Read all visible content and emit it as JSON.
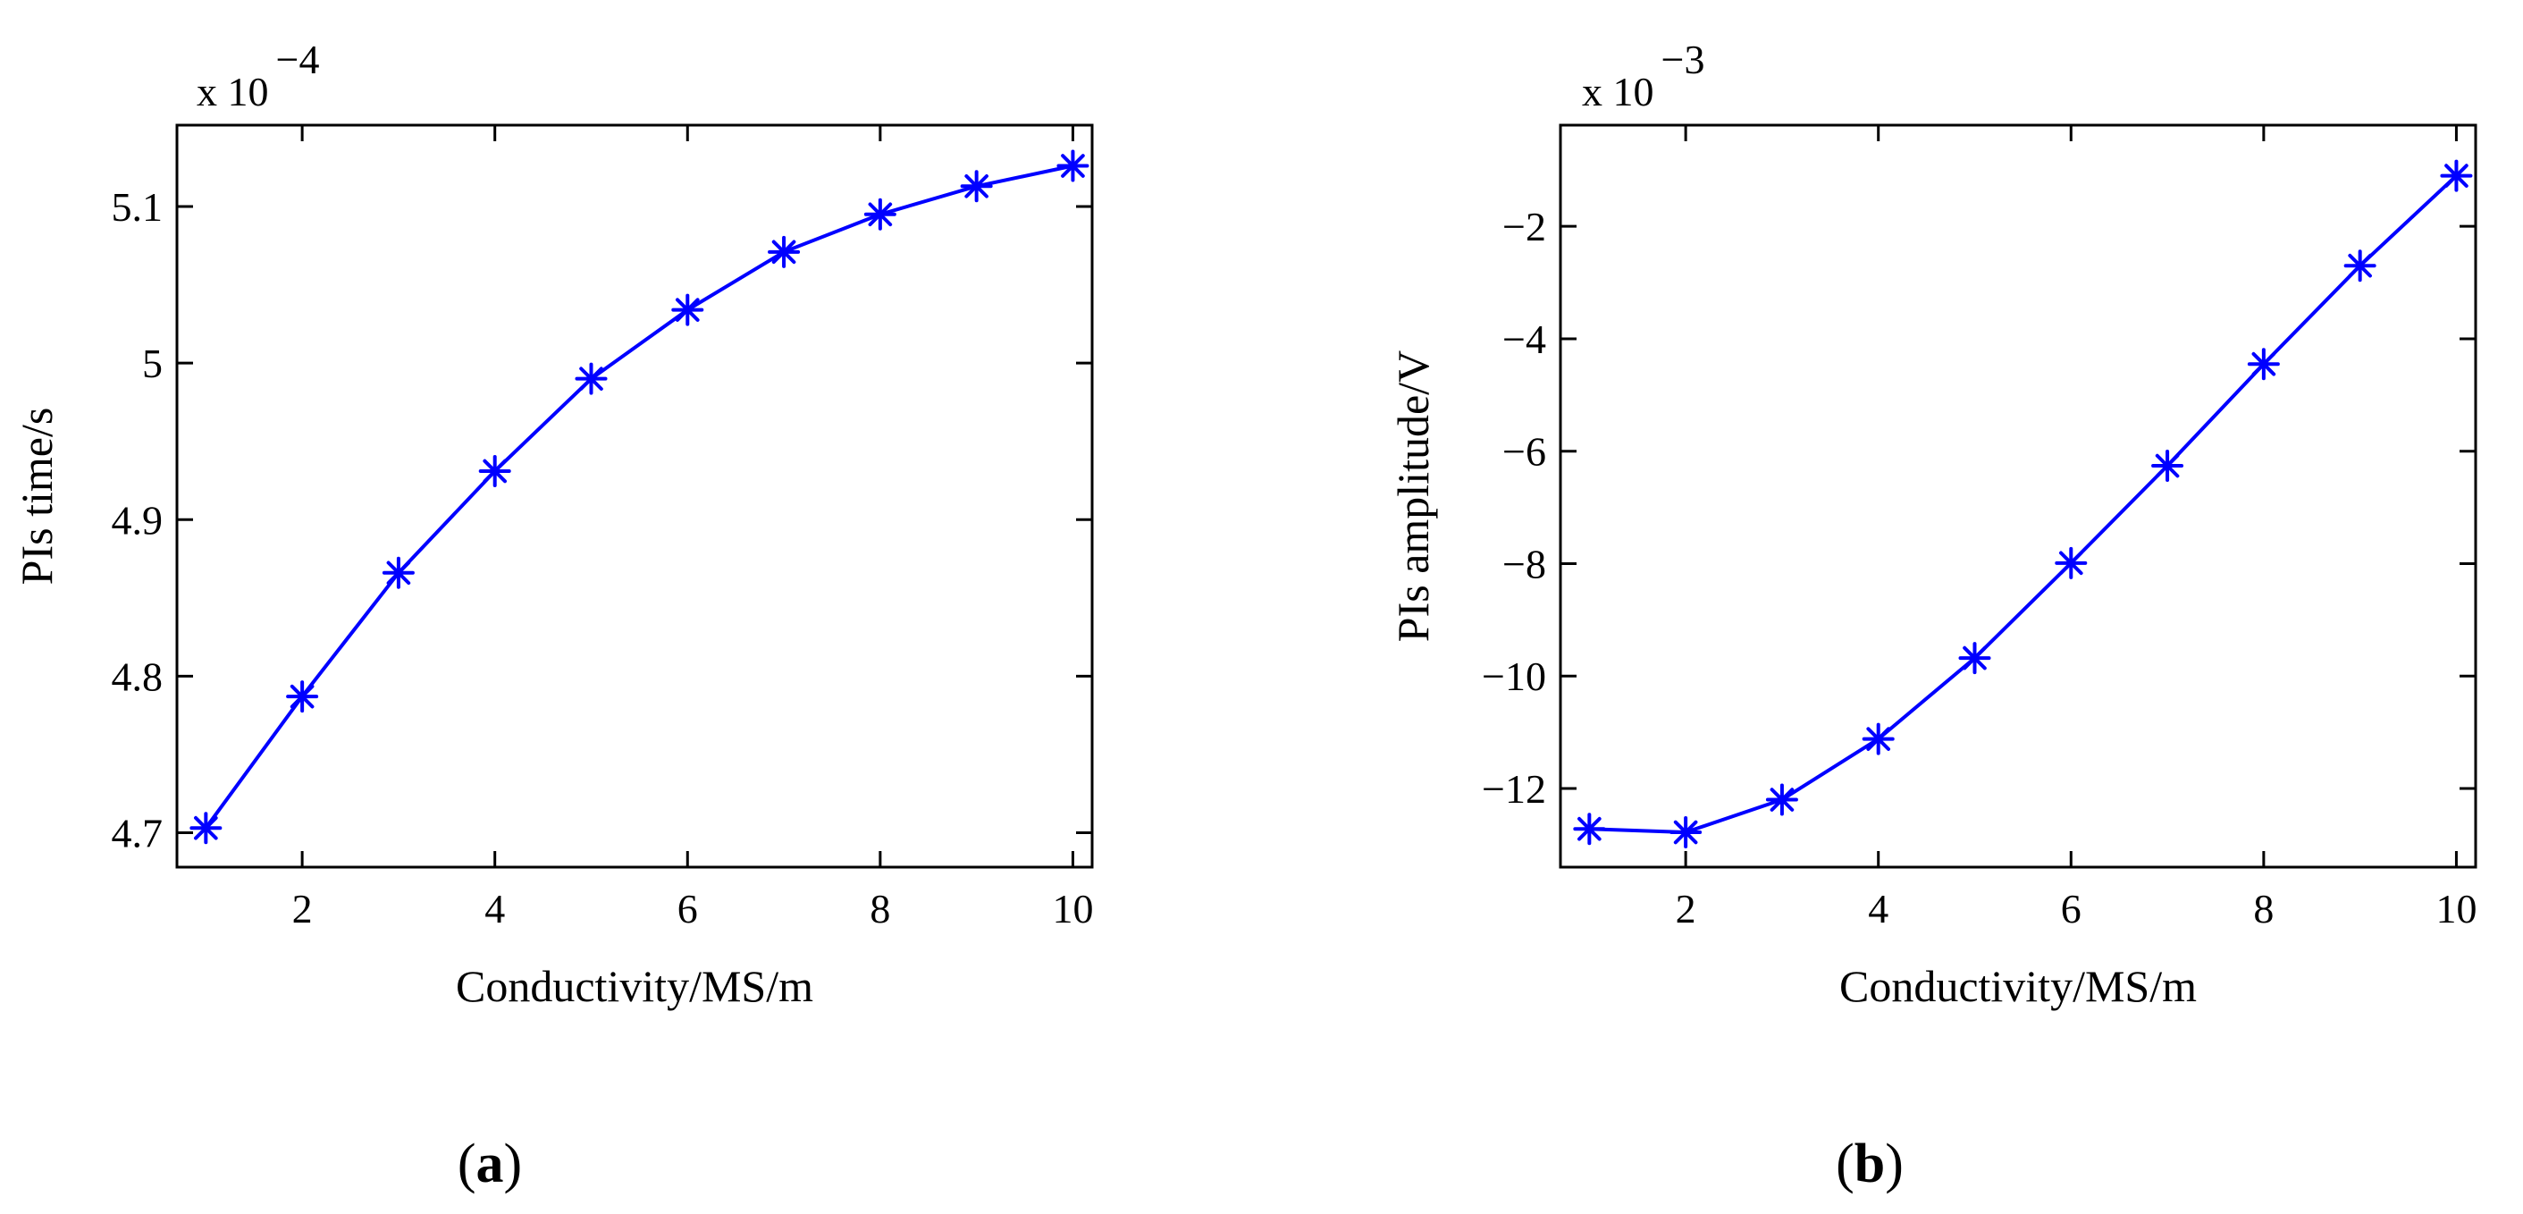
{
  "chart_data": [
    {
      "id": "a",
      "panel_label": "a",
      "type": "line",
      "marker": "asterisk",
      "color": "#0000ff",
      "xlabel": "Conductivity/MS/m",
      "ylabel": "PIs time/s",
      "exponent_prefix": "x 10",
      "exponent": "−4",
      "xlim": [
        0.7,
        10.2
      ],
      "ylim": [
        4.678,
        5.152
      ],
      "x_ticks": [
        2,
        4,
        6,
        8,
        10
      ],
      "x_tick_labels": [
        "2",
        "4",
        "6",
        "8",
        "10"
      ],
      "y_ticks": [
        4.7,
        4.8,
        4.9,
        5.0,
        5.1
      ],
      "y_tick_labels": [
        "4.7",
        "4.8",
        "4.9",
        "5",
        "5.1"
      ],
      "x": [
        1,
        2,
        3,
        4,
        5,
        6,
        7,
        8,
        9,
        10
      ],
      "y": [
        4.703,
        4.787,
        4.866,
        4.931,
        4.99,
        5.034,
        5.071,
        5.095,
        5.113,
        5.126
      ]
    },
    {
      "id": "b",
      "panel_label": "b",
      "type": "line",
      "marker": "asterisk",
      "color": "#0000ff",
      "xlabel": "Conductivity/MS/m",
      "ylabel": "PIs amplitude/V",
      "exponent_prefix": "x 10",
      "exponent": "−3",
      "xlim": [
        0.7,
        10.2
      ],
      "ylim": [
        -13.4,
        -0.2
      ],
      "x_ticks": [
        2,
        4,
        6,
        8,
        10
      ],
      "x_tick_labels": [
        "2",
        "4",
        "6",
        "8",
        "10"
      ],
      "y_ticks": [
        -12,
        -10,
        -8,
        -6,
        -4,
        -2
      ],
      "y_tick_labels": [
        "−12",
        "−10",
        "−8",
        "−6",
        "−4",
        "−2"
      ],
      "x": [
        1,
        2,
        3,
        4,
        5,
        6,
        7,
        8,
        9,
        10
      ],
      "y": [
        -12.72,
        -12.78,
        -12.2,
        -11.12,
        -9.68,
        -7.99,
        -6.26,
        -4.45,
        -2.7,
        -1.1
      ]
    }
  ]
}
